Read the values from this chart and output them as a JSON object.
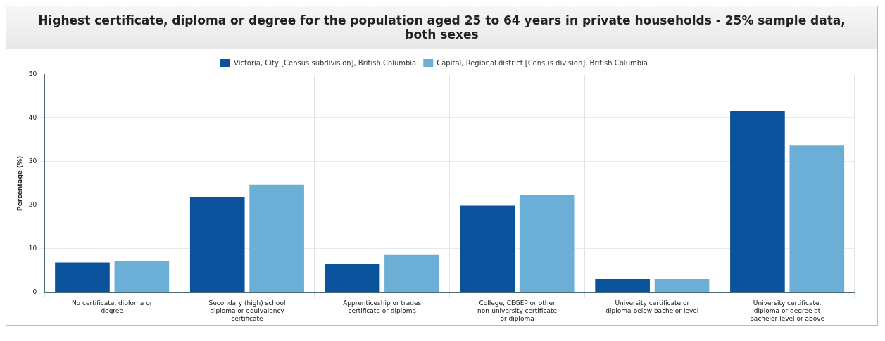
{
  "chart_data": {
    "type": "bar",
    "title": "Highest certificate, diploma or degree for the population aged 25 to 64 years in private households - 25% sample data, both sexes",
    "ylabel": "Percentage (%)",
    "categories": [
      "No certificate, diploma or degree",
      "Secondary (high) school diploma or equivalency certificate",
      "Apprenticeship or trades certificate or diploma",
      "College, CEGEP or other non-university certificate or diploma",
      "University certificate or diploma below bachelor level",
      "University certificate, diploma or degree at bachelor level or above"
    ],
    "series": [
      {
        "name": "Victoria, City [Census subdivision], British Columbia",
        "color": "#0a529b",
        "values": [
          6.8,
          21.9,
          6.5,
          19.9,
          3.0,
          41.6
        ]
      },
      {
        "name": "Capital, Regional district [Census division], British Columbia",
        "color": "#6baed6",
        "values": [
          7.2,
          24.7,
          8.7,
          22.4,
          3.0,
          33.8
        ]
      }
    ],
    "ylim": [
      0,
      50
    ],
    "yticks": [
      0,
      10,
      20,
      30,
      40,
      50
    ],
    "grid": true,
    "legend": "top"
  }
}
